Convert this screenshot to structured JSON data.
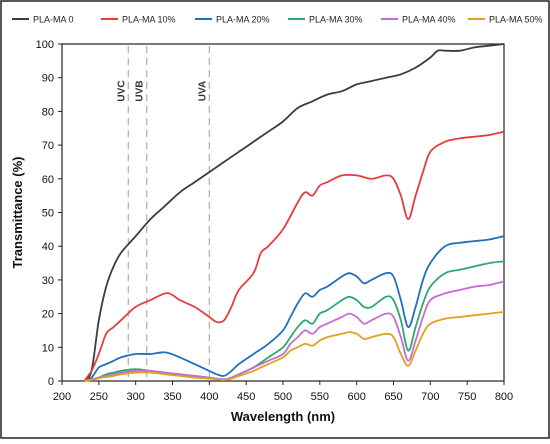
{
  "chart_data": {
    "type": "line",
    "xlabel": "Wavelength (nm)",
    "ylabel": "Transmittance (%)",
    "xlim": [
      200,
      800
    ],
    "ylim": [
      0,
      100
    ],
    "xticks": [
      200,
      250,
      300,
      350,
      400,
      450,
      500,
      550,
      600,
      650,
      700,
      750,
      800
    ],
    "yticks": [
      0,
      10,
      20,
      30,
      40,
      50,
      60,
      70,
      80,
      90,
      100
    ],
    "grid": false,
    "legend_position": "top",
    "reference_lines": [
      {
        "label": "UVC",
        "x": 290
      },
      {
        "label": "UVB",
        "x": 315
      },
      {
        "label": "UVA",
        "x": 400
      }
    ],
    "series": [
      {
        "name": "PLA-MA 0",
        "color": "#3c3c3c",
        "points": [
          [
            230,
            0
          ],
          [
            240,
            3
          ],
          [
            250,
            18
          ],
          [
            260,
            28
          ],
          [
            270,
            34
          ],
          [
            280,
            38
          ],
          [
            300,
            43
          ],
          [
            320,
            48
          ],
          [
            340,
            52
          ],
          [
            360,
            56
          ],
          [
            380,
            59
          ],
          [
            400,
            62
          ],
          [
            420,
            65
          ],
          [
            440,
            68
          ],
          [
            460,
            71
          ],
          [
            480,
            74
          ],
          [
            500,
            77
          ],
          [
            520,
            81
          ],
          [
            540,
            83
          ],
          [
            560,
            85
          ],
          [
            580,
            86
          ],
          [
            600,
            88
          ],
          [
            620,
            89
          ],
          [
            640,
            90
          ],
          [
            660,
            91
          ],
          [
            680,
            93
          ],
          [
            700,
            96
          ],
          [
            710,
            98
          ],
          [
            720,
            98
          ],
          [
            740,
            98
          ],
          [
            760,
            99
          ],
          [
            780,
            99.5
          ],
          [
            800,
            100
          ]
        ]
      },
      {
        "name": "PLA-MA 10%",
        "color": "#e63c3c",
        "points": [
          [
            230,
            0
          ],
          [
            240,
            3
          ],
          [
            250,
            8
          ],
          [
            260,
            14
          ],
          [
            270,
            16
          ],
          [
            280,
            18
          ],
          [
            300,
            22
          ],
          [
            320,
            24
          ],
          [
            340,
            26
          ],
          [
            350,
            25.5
          ],
          [
            360,
            24
          ],
          [
            380,
            22
          ],
          [
            400,
            19
          ],
          [
            410,
            17.5
          ],
          [
            420,
            18
          ],
          [
            430,
            22
          ],
          [
            440,
            27
          ],
          [
            460,
            32
          ],
          [
            470,
            38
          ],
          [
            480,
            40
          ],
          [
            500,
            45
          ],
          [
            520,
            53
          ],
          [
            530,
            56
          ],
          [
            540,
            55
          ],
          [
            550,
            58
          ],
          [
            560,
            59
          ],
          [
            580,
            61
          ],
          [
            600,
            61
          ],
          [
            620,
            60
          ],
          [
            640,
            61
          ],
          [
            650,
            60
          ],
          [
            660,
            55
          ],
          [
            670,
            48
          ],
          [
            680,
            55
          ],
          [
            690,
            62
          ],
          [
            700,
            68
          ],
          [
            720,
            71
          ],
          [
            740,
            72
          ],
          [
            760,
            72.5
          ],
          [
            780,
            73
          ],
          [
            800,
            74
          ]
        ]
      },
      {
        "name": "PLA-MA 20%",
        "color": "#1f6fbf",
        "points": [
          [
            230,
            0
          ],
          [
            240,
            1
          ],
          [
            250,
            4
          ],
          [
            260,
            5
          ],
          [
            270,
            6
          ],
          [
            280,
            7
          ],
          [
            300,
            8
          ],
          [
            320,
            8
          ],
          [
            340,
            8.5
          ],
          [
            360,
            7
          ],
          [
            380,
            5
          ],
          [
            400,
            3
          ],
          [
            410,
            2
          ],
          [
            420,
            1.5
          ],
          [
            430,
            3
          ],
          [
            440,
            5
          ],
          [
            460,
            8
          ],
          [
            480,
            11
          ],
          [
            500,
            15
          ],
          [
            510,
            19
          ],
          [
            520,
            23
          ],
          [
            530,
            26
          ],
          [
            540,
            25
          ],
          [
            550,
            27
          ],
          [
            560,
            28
          ],
          [
            580,
            31
          ],
          [
            590,
            32
          ],
          [
            600,
            31
          ],
          [
            610,
            29
          ],
          [
            620,
            30
          ],
          [
            640,
            32
          ],
          [
            650,
            31
          ],
          [
            660,
            24
          ],
          [
            670,
            16
          ],
          [
            680,
            22
          ],
          [
            690,
            30
          ],
          [
            700,
            35
          ],
          [
            720,
            40
          ],
          [
            740,
            41
          ],
          [
            760,
            41.5
          ],
          [
            780,
            42
          ],
          [
            800,
            43
          ]
        ]
      },
      {
        "name": "PLA-MA 30%",
        "color": "#2da96b",
        "points": [
          [
            230,
            0
          ],
          [
            240,
            0.5
          ],
          [
            250,
            1
          ],
          [
            260,
            2
          ],
          [
            270,
            2.5
          ],
          [
            280,
            3
          ],
          [
            300,
            3.5
          ],
          [
            320,
            3
          ],
          [
            340,
            2.5
          ],
          [
            360,
            2
          ],
          [
            380,
            1.5
          ],
          [
            400,
            1
          ],
          [
            420,
            0.5
          ],
          [
            430,
            1
          ],
          [
            440,
            2
          ],
          [
            460,
            4
          ],
          [
            480,
            7
          ],
          [
            500,
            10
          ],
          [
            510,
            13
          ],
          [
            520,
            16
          ],
          [
            530,
            18
          ],
          [
            540,
            17
          ],
          [
            550,
            20
          ],
          [
            560,
            21
          ],
          [
            580,
            24
          ],
          [
            590,
            25
          ],
          [
            600,
            24
          ],
          [
            610,
            22
          ],
          [
            620,
            22
          ],
          [
            640,
            25
          ],
          [
            650,
            24
          ],
          [
            660,
            18
          ],
          [
            670,
            9
          ],
          [
            680,
            16
          ],
          [
            690,
            23
          ],
          [
            700,
            28
          ],
          [
            720,
            32
          ],
          [
            740,
            33
          ],
          [
            760,
            34
          ],
          [
            780,
            35
          ],
          [
            800,
            35.5
          ]
        ]
      },
      {
        "name": "PLA-MA 40%",
        "color": "#c46dd6",
        "points": [
          [
            230,
            0
          ],
          [
            240,
            0.5
          ],
          [
            250,
            1
          ],
          [
            260,
            1.5
          ],
          [
            270,
            2
          ],
          [
            280,
            2.5
          ],
          [
            300,
            3
          ],
          [
            320,
            3
          ],
          [
            340,
            2.5
          ],
          [
            360,
            2
          ],
          [
            380,
            1.5
          ],
          [
            400,
            1
          ],
          [
            420,
            0.5
          ],
          [
            430,
            1
          ],
          [
            440,
            2
          ],
          [
            460,
            4
          ],
          [
            480,
            6
          ],
          [
            500,
            8
          ],
          [
            510,
            11
          ],
          [
            520,
            13
          ],
          [
            530,
            15
          ],
          [
            540,
            14
          ],
          [
            550,
            16
          ],
          [
            560,
            17
          ],
          [
            580,
            19
          ],
          [
            590,
            20
          ],
          [
            600,
            19
          ],
          [
            610,
            17
          ],
          [
            620,
            18
          ],
          [
            640,
            20
          ],
          [
            650,
            19
          ],
          [
            660,
            13
          ],
          [
            670,
            6
          ],
          [
            680,
            12
          ],
          [
            690,
            19
          ],
          [
            700,
            24
          ],
          [
            720,
            26
          ],
          [
            740,
            27
          ],
          [
            760,
            28
          ],
          [
            780,
            28.5
          ],
          [
            800,
            29.5
          ]
        ]
      },
      {
        "name": "PLA-MA 50%",
        "color": "#e0a020",
        "points": [
          [
            230,
            0
          ],
          [
            240,
            0.3
          ],
          [
            250,
            0.8
          ],
          [
            260,
            1.2
          ],
          [
            270,
            1.5
          ],
          [
            280,
            2
          ],
          [
            300,
            2.5
          ],
          [
            320,
            2.5
          ],
          [
            340,
            2
          ],
          [
            360,
            1.5
          ],
          [
            380,
            1
          ],
          [
            400,
            0.7
          ],
          [
            420,
            0.3
          ],
          [
            430,
            0.7
          ],
          [
            440,
            1.5
          ],
          [
            460,
            3
          ],
          [
            480,
            5
          ],
          [
            500,
            7
          ],
          [
            510,
            9
          ],
          [
            520,
            10
          ],
          [
            530,
            11
          ],
          [
            540,
            10.5
          ],
          [
            550,
            12
          ],
          [
            560,
            13
          ],
          [
            580,
            14
          ],
          [
            590,
            14.5
          ],
          [
            600,
            14
          ],
          [
            610,
            12.5
          ],
          [
            620,
            13
          ],
          [
            640,
            14
          ],
          [
            650,
            13
          ],
          [
            660,
            8
          ],
          [
            670,
            4.5
          ],
          [
            680,
            9
          ],
          [
            690,
            14
          ],
          [
            700,
            17
          ],
          [
            720,
            18.5
          ],
          [
            740,
            19
          ],
          [
            760,
            19.5
          ],
          [
            780,
            20
          ],
          [
            800,
            20.5
          ]
        ]
      }
    ]
  }
}
